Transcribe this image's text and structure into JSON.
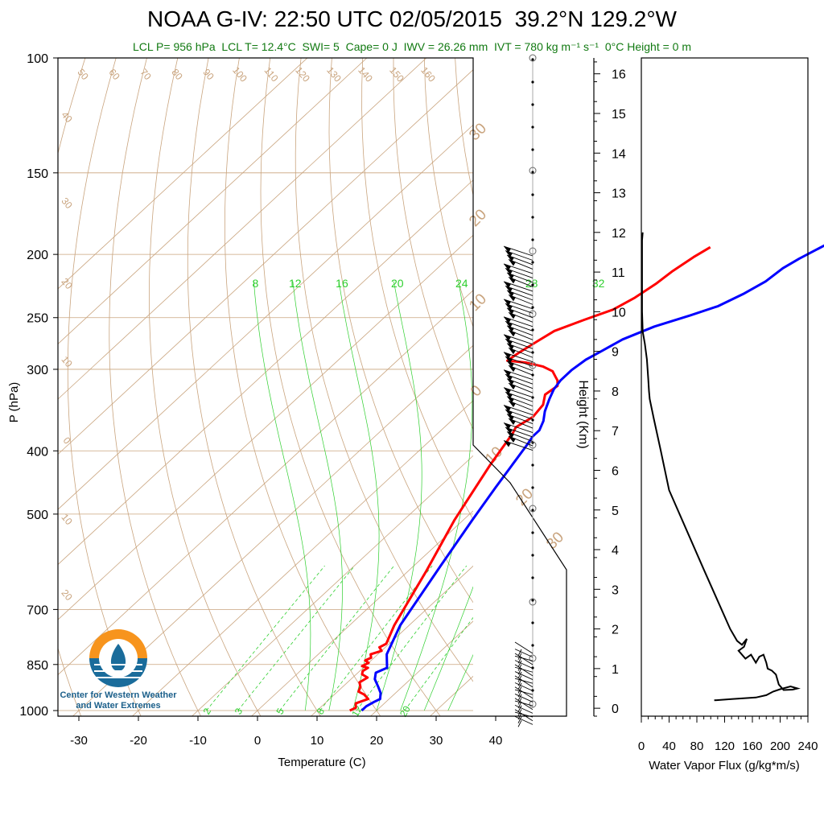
{
  "title": "NOAA G-IV: 22:50 UTC 02/05/2015  39.2°N 129.2°W",
  "subtitle": "LCL P= 956 hPa  LCL T= 12.4°C  SWI= 5  Cape= 0 J  IWV = 26.26 mm  IVT = 780 kg m⁻¹ s⁻¹  0°C Height = 0 m",
  "logo": {
    "line1": "Center for Western Weather",
    "line2": "and Water Extremes"
  },
  "colors": {
    "temperature": "#ff0000",
    "dewpoint": "#0000ff",
    "dry_adiabat": "#c9a47e",
    "moist_adiabat": "#2ecf2e",
    "mixing_ratio": "#2ecf2e",
    "subtitle": "#127a12",
    "logo_orange": "#f7941d",
    "logo_blue": "#1a6c9b"
  },
  "chart_data": [
    {
      "type": "line",
      "subtype": "skew-T log-P",
      "xlabel": "Temperature (C)",
      "ylabel": "P (hPa)",
      "xlim": [
        -34,
        52
      ],
      "ylim": [
        1020,
        100
      ],
      "y_scale": "log",
      "x_ticks": [
        "-30",
        "-20",
        "-10",
        "0",
        "10",
        "20",
        "30",
        "40"
      ],
      "y_ticks": [
        "100",
        "150",
        "200",
        "250",
        "300",
        "400",
        "500",
        "700",
        "850",
        "1000"
      ],
      "dry_adiabat_labels": [
        "50",
        "60",
        "70",
        "80",
        "90",
        "100",
        "110",
        "120",
        "130",
        "140",
        "150",
        "160",
        "40",
        "30",
        "20",
        "10",
        "0",
        "10",
        "20"
      ],
      "right_temp_labels": [
        "30",
        "20",
        "10",
        "0",
        "10",
        "20",
        "30"
      ],
      "moist_adiabat_labels": [
        "8",
        "12",
        "16",
        "20",
        "24",
        "28",
        "32"
      ],
      "mixing_ratio_labels": [
        "2",
        "3",
        "5",
        "8",
        "12",
        "20"
      ],
      "series": [
        {
          "name": "Temperature",
          "points": [
            [
              15.5,
              1000
            ],
            [
              16.0,
              990
            ],
            [
              15.2,
              975
            ],
            [
              16.5,
              960
            ],
            [
              15.0,
              945
            ],
            [
              13.5,
              935
            ],
            [
              13.0,
              920
            ],
            [
              12.0,
              905
            ],
            [
              12.5,
              890
            ],
            [
              11.0,
              880
            ],
            [
              10.5,
              870
            ],
            [
              10.8,
              860
            ],
            [
              9.5,
              855
            ],
            [
              10.0,
              845
            ],
            [
              9.0,
              838
            ],
            [
              9.5,
              830
            ],
            [
              8.8,
              820
            ],
            [
              10.0,
              810
            ],
            [
              9.0,
              800
            ],
            [
              9.5,
              790
            ],
            [
              7.5,
              740
            ],
            [
              3.0,
              610
            ],
            [
              -1.5,
              510
            ],
            [
              -5.5,
              420
            ],
            [
              -7.0,
              385
            ],
            [
              -7.5,
              375
            ],
            [
              -8.0,
              368
            ],
            [
              -7.0,
              355
            ],
            [
              -7.5,
              340
            ],
            [
              -9.0,
              328
            ],
            [
              -8.5,
              318
            ],
            [
              -9.5,
              312
            ],
            [
              -10.5,
              308
            ],
            [
              -12.0,
              302
            ],
            [
              -14.5,
              297
            ],
            [
              -18.0,
              293
            ],
            [
              -21.5,
              291
            ],
            [
              -21.0,
              283
            ],
            [
              -20.0,
              272
            ],
            [
              -19.0,
              262
            ],
            [
              -16.0,
              252
            ],
            [
              -13.0,
              243
            ],
            [
              -11.5,
              233
            ],
            [
              -10.5,
              222
            ],
            [
              -10.0,
              212
            ],
            [
              -9.0,
              202
            ],
            [
              -8.0,
              195
            ]
          ]
        },
        {
          "name": "Dewpoint",
          "points": [
            [
              17.5,
              1000
            ],
            [
              17.5,
              985
            ],
            [
              18.0,
              970
            ],
            [
              18.5,
              960
            ],
            [
              17.5,
              940
            ],
            [
              16.0,
              920
            ],
            [
              14.0,
              895
            ],
            [
              13.0,
              875
            ],
            [
              14.0,
              860
            ],
            [
              11.5,
              820
            ],
            [
              8.5,
              740
            ],
            [
              4.5,
              600
            ],
            [
              1.5,
              510
            ],
            [
              -0.5,
              455
            ],
            [
              -3.0,
              390
            ],
            [
              -3.5,
              380
            ],
            [
              -3.5,
              372
            ],
            [
              -4.5,
              360
            ],
            [
              -6.0,
              348
            ],
            [
              -7.5,
              333
            ],
            [
              -8.5,
              322
            ],
            [
              -9.0,
              312
            ],
            [
              -9.0,
              301
            ],
            [
              -8.5,
              290
            ],
            [
              -7.5,
              282
            ],
            [
              -6.0,
              270
            ],
            [
              -3.0,
              258
            ],
            [
              1.0,
              248
            ],
            [
              4.0,
              240
            ],
            [
              6.0,
              230
            ],
            [
              7.5,
              220
            ],
            [
              8.0,
              210
            ],
            [
              9.0,
              203
            ],
            [
              10.0,
              198
            ],
            [
              11.0,
              193
            ]
          ]
        }
      ]
    },
    {
      "type": "line",
      "xlabel": "Water Vapor Flux (g/kg*m/s)",
      "ylabel": "Height (Km)",
      "xlim": [
        0,
        240
      ],
      "ylim": [
        -0.2,
        16.4
      ],
      "x_ticks": [
        "0",
        "40",
        "80",
        "120",
        "160",
        "200",
        "240"
      ],
      "y_ticks": [
        "0",
        "1",
        "2",
        "3",
        "4",
        "5",
        "6",
        "7",
        "8",
        "9",
        "10",
        "11",
        "12",
        "13",
        "14",
        "15",
        "16"
      ],
      "series": [
        {
          "name": "Water Vapor Flux",
          "points": [
            [
              105,
              0.2
            ],
            [
              130,
              0.23
            ],
            [
              165,
              0.27
            ],
            [
              180,
              0.33
            ],
            [
              190,
              0.42
            ],
            [
              200,
              0.48
            ],
            [
              215,
              0.55
            ],
            [
              225,
              0.5
            ],
            [
              218,
              0.47
            ],
            [
              205,
              0.46
            ],
            [
              198,
              0.6
            ],
            [
              194,
              0.85
            ],
            [
              188,
              0.95
            ],
            [
              182,
              1.0
            ],
            [
              180,
              1.15
            ],
            [
              176,
              1.35
            ],
            [
              170,
              1.3
            ],
            [
              165,
              1.15
            ],
            [
              158,
              1.35
            ],
            [
              150,
              1.25
            ],
            [
              140,
              1.45
            ],
            [
              148,
              1.55
            ],
            [
              152,
              1.75
            ],
            [
              145,
              1.6
            ],
            [
              138,
              1.7
            ],
            [
              133,
              1.85
            ],
            [
              128,
              2.0
            ],
            [
              90,
              3.5
            ],
            [
              40,
              5.5
            ],
            [
              28,
              6.5
            ],
            [
              18,
              7.3
            ],
            [
              12,
              7.8
            ],
            [
              11,
              8.0
            ],
            [
              10,
              8.3
            ],
            [
              8,
              8.8
            ],
            [
              5,
              9.2
            ],
            [
              2,
              9.5
            ],
            [
              1,
              10.0
            ],
            [
              1,
              11.0
            ],
            [
              1,
              11.8
            ],
            [
              2,
              12.0
            ]
          ]
        }
      ]
    }
  ],
  "wind_barbs": {
    "count_upper": 45,
    "count_lower": 20
  }
}
